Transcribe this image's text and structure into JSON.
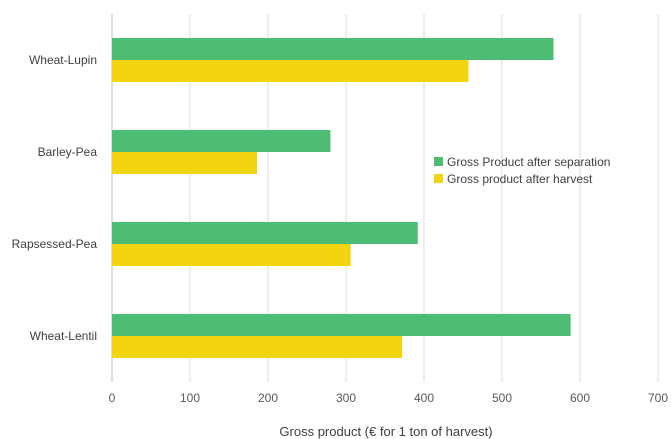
{
  "chart_data": {
    "type": "bar",
    "orientation": "horizontal",
    "categories": [
      "Wheat-Lupin",
      "Barley-Pea",
      "Rapsessed-Pea",
      "Wheat-Lentil"
    ],
    "series": [
      {
        "name": "Gross Product after separation",
        "color": "#4dbd74",
        "values": [
          566,
          280,
          392,
          588
        ]
      },
      {
        "name": "Gross product after harvest",
        "color": "#f2d50f",
        "values": [
          457,
          186,
          306,
          372
        ]
      }
    ],
    "xlabel": "Gross product (€ for 1 ton of harvest)",
    "ylabel": "",
    "xlim": [
      0,
      700
    ],
    "x_ticks": [
      0,
      100,
      200,
      300,
      400,
      500,
      600,
      700
    ],
    "grid": "vertical",
    "legend_position": "right"
  }
}
